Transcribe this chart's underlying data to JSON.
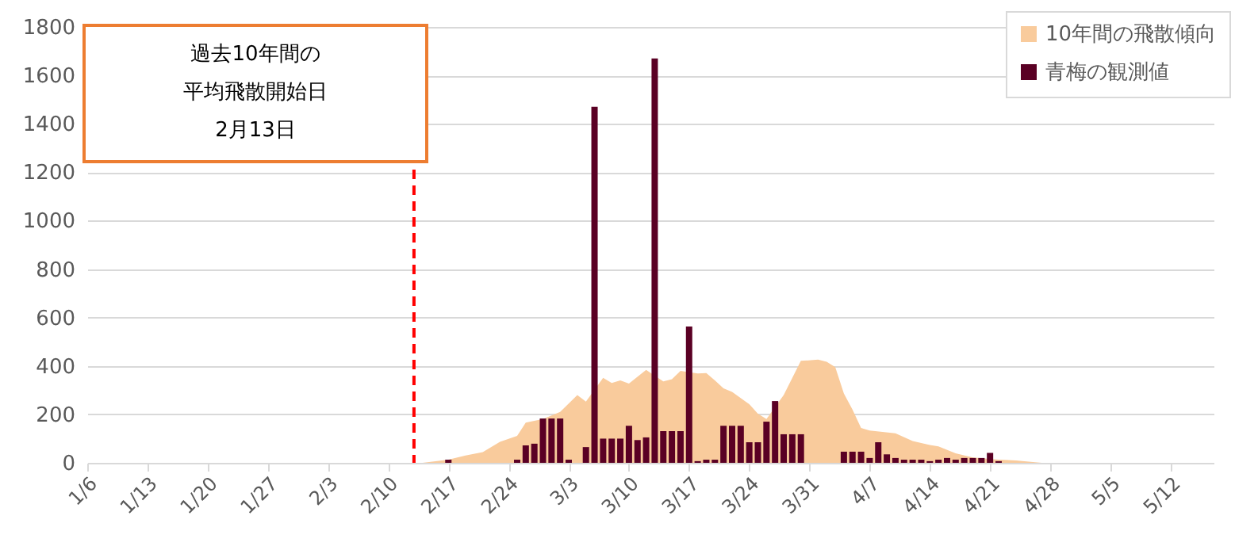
{
  "chart_data": {
    "type": "bar",
    "series": [
      {
        "name": "10年間の飛散傾向",
        "type": "area",
        "color": "#f9cb9c",
        "x": [
          "--02-14",
          "--02-17",
          "--02-19",
          "--02-21",
          "--02-23",
          "--02-25",
          "--02-26",
          "--02-28",
          "--03-02",
          "--03-04",
          "--03-05",
          "--03-07",
          "--03-08",
          "--03-09",
          "--03-10",
          "--03-12",
          "--03-14",
          "--03-15",
          "--03-16",
          "--03-18",
          "--03-19",
          "--03-20",
          "--03-21",
          "--03-22",
          "--03-24",
          "--03-25",
          "--03-26",
          "--03-28",
          "--03-30",
          "--04-01",
          "--04-02",
          "--04-03",
          "--04-04",
          "--04-05",
          "--04-06",
          "--04-07",
          "--04-10",
          "--04-12",
          "--04-14",
          "--04-15",
          "--04-17",
          "--04-19",
          "--04-22",
          "--04-24",
          "--04-27"
        ],
        "values": [
          0,
          13,
          30,
          44,
          87,
          111,
          166,
          181,
          210,
          280,
          253,
          351,
          330,
          340,
          327,
          384,
          336,
          345,
          380,
          369,
          371,
          340,
          308,
          293,
          242,
          203,
          181,
          280,
          421,
          426,
          417,
          395,
          286,
          220,
          144,
          133,
          122,
          90,
          74,
          68,
          39,
          22,
          13,
          10,
          0
        ]
      },
      {
        "name": "青梅の観測値",
        "color": "#5a0024",
        "x": [
          "--02-17",
          "--02-25",
          "--02-26",
          "--02-27",
          "--02-28",
          "--03-01",
          "--03-02",
          "--03-03",
          "--03-05",
          "--03-06",
          "--03-07",
          "--03-08",
          "--03-09",
          "--03-10",
          "--03-11",
          "--03-12",
          "--03-13",
          "--03-14",
          "--03-15",
          "--03-16",
          "--03-17",
          "--03-18",
          "--03-19",
          "--03-20",
          "--03-21",
          "--03-22",
          "--03-23",
          "--03-24",
          "--03-25",
          "--03-26",
          "--03-27",
          "--03-28",
          "--03-29",
          "--03-30",
          "--04-04",
          "--04-05",
          "--04-06",
          "--04-07",
          "--04-08",
          "--04-09",
          "--04-10",
          "--04-11",
          "--04-12",
          "--04-13",
          "--04-14",
          "--04-15",
          "--04-16",
          "--04-17",
          "--04-18",
          "--04-19",
          "--04-20",
          "--04-21",
          "--04-22"
        ],
        "values": [
          13,
          13,
          72,
          79,
          183,
          183,
          183,
          13,
          65,
          1470,
          100,
          100,
          100,
          153,
          94,
          105,
          1670,
          131,
          131,
          131,
          563,
          7,
          13,
          13,
          153,
          153,
          153,
          85,
          85,
          170,
          255,
          118,
          118,
          118,
          46,
          46,
          46,
          20,
          85,
          35,
          20,
          13,
          13,
          13,
          7,
          13,
          20,
          13,
          20,
          20,
          20,
          41,
          7
        ]
      }
    ],
    "xlim": [
      "--01-06",
      "--05-17"
    ],
    "xticks": [
      {
        "value": "--01-06",
        "label": "1/6"
      },
      {
        "value": "--01-13",
        "label": "1/13"
      },
      {
        "value": "--01-20",
        "label": "1/20"
      },
      {
        "value": "--01-27",
        "label": "1/27"
      },
      {
        "value": "--02-03",
        "label": "2/3"
      },
      {
        "value": "--02-10",
        "label": "2/10"
      },
      {
        "value": "--02-17",
        "label": "2/17"
      },
      {
        "value": "--02-24",
        "label": "2/24"
      },
      {
        "value": "--03-03",
        "label": "3/3"
      },
      {
        "value": "--03-10",
        "label": "3/10"
      },
      {
        "value": "--03-17",
        "label": "3/17"
      },
      {
        "value": "--03-24",
        "label": "3/24"
      },
      {
        "value": "--03-31",
        "label": "3/31"
      },
      {
        "value": "--04-07",
        "label": "4/7"
      },
      {
        "value": "--04-14",
        "label": "4/14"
      },
      {
        "value": "--04-21",
        "label": "4/21"
      },
      {
        "value": "--04-28",
        "label": "4/28"
      },
      {
        "value": "--05-05",
        "label": "5/5"
      },
      {
        "value": "--05-12",
        "label": "5/12"
      }
    ],
    "ylim": [
      0,
      1800
    ],
    "yticks": [
      0,
      200,
      400,
      600,
      800,
      1000,
      1200,
      1400,
      1600,
      1800
    ],
    "grid": "y",
    "legend": "top right",
    "annotations": [
      "過去10年間の",
      "平均飛散開始日",
      "2月13日"
    ],
    "ref_lines": [
      {
        "axis": "x",
        "value": "--02-13",
        "color": "#ff0000",
        "line_style": "dashed"
      }
    ]
  }
}
